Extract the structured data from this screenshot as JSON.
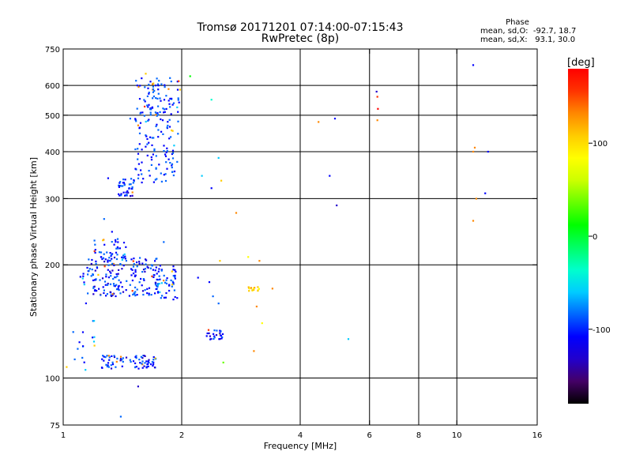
{
  "header": {
    "title_line1": "Tromsø 20171201 07:14:00-07:15:43",
    "title_line2": "RwPretec (8p)"
  },
  "phase_info": {
    "heading": "Phase",
    "line1": "mean, sd,O:  -92.7, 18.7",
    "line2": "mean, sd,X:   93.1, 30.0"
  },
  "colorbar": {
    "unit_label": "[deg]",
    "min": -180,
    "max": 180,
    "tick_values": [
      100,
      0,
      -100
    ],
    "tick_labels": [
      "100",
      "0",
      "-100"
    ],
    "stops": [
      "#000000",
      "#440066",
      "#2200cc",
      "#0000ff",
      "#0066ff",
      "#00ccff",
      "#00ffcc",
      "#00ff66",
      "#00ff00",
      "#66ff00",
      "#ccff00",
      "#ffff00",
      "#ffcc00",
      "#ff8800",
      "#ff3300",
      "#ff0000"
    ]
  },
  "chart_data": {
    "type": "scatter",
    "title": "Tromsø 20171201 07:14:00-07:15:43",
    "subtitle": "RwPretec (8p)",
    "xlabel": "Frequency [MHz]",
    "ylabel": "Stationary phase Virtual Height [km]",
    "x_scale": "log",
    "y_scale": "log",
    "xlim": [
      1,
      16
    ],
    "ylim": [
      75,
      750
    ],
    "x_ticks": [
      1,
      2,
      4,
      6,
      8,
      10,
      16
    ],
    "x_tick_labels": [
      "1",
      "2",
      "4",
      "6",
      "8",
      "10",
      "16"
    ],
    "x_gridlines": [
      2,
      4,
      6,
      8,
      10
    ],
    "y_ticks": [
      75,
      100,
      200,
      300,
      400,
      500,
      600,
      750
    ],
    "y_tick_labels": [
      "75",
      "100",
      "200",
      "300",
      "400",
      "500",
      "600",
      "750"
    ],
    "y_gridlines": [
      100,
      200,
      300,
      400,
      500,
      600
    ],
    "grid": true,
    "color_variable": "phase (deg)",
    "clusters": [
      {
        "f": [
          1.52,
          1.97
        ],
        "h": [
          330,
          630
        ],
        "phase": -95,
        "n": 190
      },
      {
        "f": [
          1.38,
          1.52
        ],
        "h": [
          305,
          340
        ],
        "phase": -100,
        "n": 40
      },
      {
        "f": [
          1.15,
          1.75
        ],
        "h": [
          165,
          210
        ],
        "phase": -100,
        "n": 180
      },
      {
        "f": [
          1.2,
          1.45
        ],
        "h": [
          205,
          235
        ],
        "phase": -95,
        "n": 40
      },
      {
        "f": [
          1.7,
          1.95
        ],
        "h": [
          160,
          200
        ],
        "phase": -90,
        "n": 50
      },
      {
        "f": [
          1.25,
          1.72
        ],
        "h": [
          106,
          115
        ],
        "phase": -100,
        "n": 80
      },
      {
        "f": [
          1.05,
          1.2
        ],
        "h": [
          105,
          190
        ],
        "phase": -85,
        "n": 25
      },
      {
        "f": [
          2.3,
          2.55
        ],
        "h": [
          126,
          135
        ],
        "phase": -110,
        "n": 25
      },
      {
        "f": [
          2.95,
          3.15
        ],
        "h": [
          170,
          175
        ],
        "phase": 100,
        "n": 14
      }
    ],
    "points": [
      {
        "x": 1.62,
        "y": 645,
        "phase": 100
      },
      {
        "x": 2.1,
        "y": 635,
        "phase": 20
      },
      {
        "x": 2.38,
        "y": 550,
        "phase": -40
      },
      {
        "x": 1.98,
        "y": 585,
        "phase": 110
      },
      {
        "x": 1.55,
        "y": 470,
        "phase": 120
      },
      {
        "x": 1.48,
        "y": 490,
        "phase": -80
      },
      {
        "x": 1.3,
        "y": 340,
        "phase": -100
      },
      {
        "x": 2.25,
        "y": 345,
        "phase": -60
      },
      {
        "x": 2.38,
        "y": 320,
        "phase": -110
      },
      {
        "x": 2.52,
        "y": 335,
        "phase": 110
      },
      {
        "x": 2.48,
        "y": 385,
        "phase": -50
      },
      {
        "x": 2.75,
        "y": 275,
        "phase": 130
      },
      {
        "x": 1.27,
        "y": 265,
        "phase": -95
      },
      {
        "x": 1.33,
        "y": 245,
        "phase": -100
      },
      {
        "x": 1.8,
        "y": 230,
        "phase": -90
      },
      {
        "x": 2.35,
        "y": 180,
        "phase": -110
      },
      {
        "x": 2.4,
        "y": 165,
        "phase": -95
      },
      {
        "x": 2.48,
        "y": 158,
        "phase": -80
      },
      {
        "x": 2.5,
        "y": 205,
        "phase": 110
      },
      {
        "x": 2.2,
        "y": 185,
        "phase": -100
      },
      {
        "x": 2.95,
        "y": 210,
        "phase": 90
      },
      {
        "x": 3.15,
        "y": 205,
        "phase": 120
      },
      {
        "x": 3.4,
        "y": 173,
        "phase": 130
      },
      {
        "x": 3.1,
        "y": 155,
        "phase": 120
      },
      {
        "x": 3.2,
        "y": 140,
        "phase": 90
      },
      {
        "x": 3.05,
        "y": 118,
        "phase": 140
      },
      {
        "x": 2.55,
        "y": 110,
        "phase": 40
      },
      {
        "x": 1.55,
        "y": 95,
        "phase": -130
      },
      {
        "x": 1.4,
        "y": 79,
        "phase": -80
      },
      {
        "x": 1.02,
        "y": 107,
        "phase": 100
      },
      {
        "x": 1.2,
        "y": 122,
        "phase": 110
      },
      {
        "x": 4.45,
        "y": 480,
        "phase": 140
      },
      {
        "x": 4.9,
        "y": 490,
        "phase": -115
      },
      {
        "x": 4.75,
        "y": 345,
        "phase": -110
      },
      {
        "x": 4.95,
        "y": 288,
        "phase": -130
      },
      {
        "x": 5.3,
        "y": 127,
        "phase": -70
      },
      {
        "x": 6.25,
        "y": 578,
        "phase": -130
      },
      {
        "x": 6.28,
        "y": 560,
        "phase": 160
      },
      {
        "x": 6.3,
        "y": 520,
        "phase": 170
      },
      {
        "x": 6.28,
        "y": 485,
        "phase": 130
      },
      {
        "x": 11.0,
        "y": 680,
        "phase": -120
      },
      {
        "x": 11.1,
        "y": 410,
        "phase": 130
      },
      {
        "x": 11.0,
        "y": 400,
        "phase": 120
      },
      {
        "x": 12.0,
        "y": 400,
        "phase": -110
      },
      {
        "x": 11.8,
        "y": 310,
        "phase": -110
      },
      {
        "x": 11.2,
        "y": 300,
        "phase": 120
      },
      {
        "x": 11.0,
        "y": 262,
        "phase": 120
      }
    ]
  }
}
